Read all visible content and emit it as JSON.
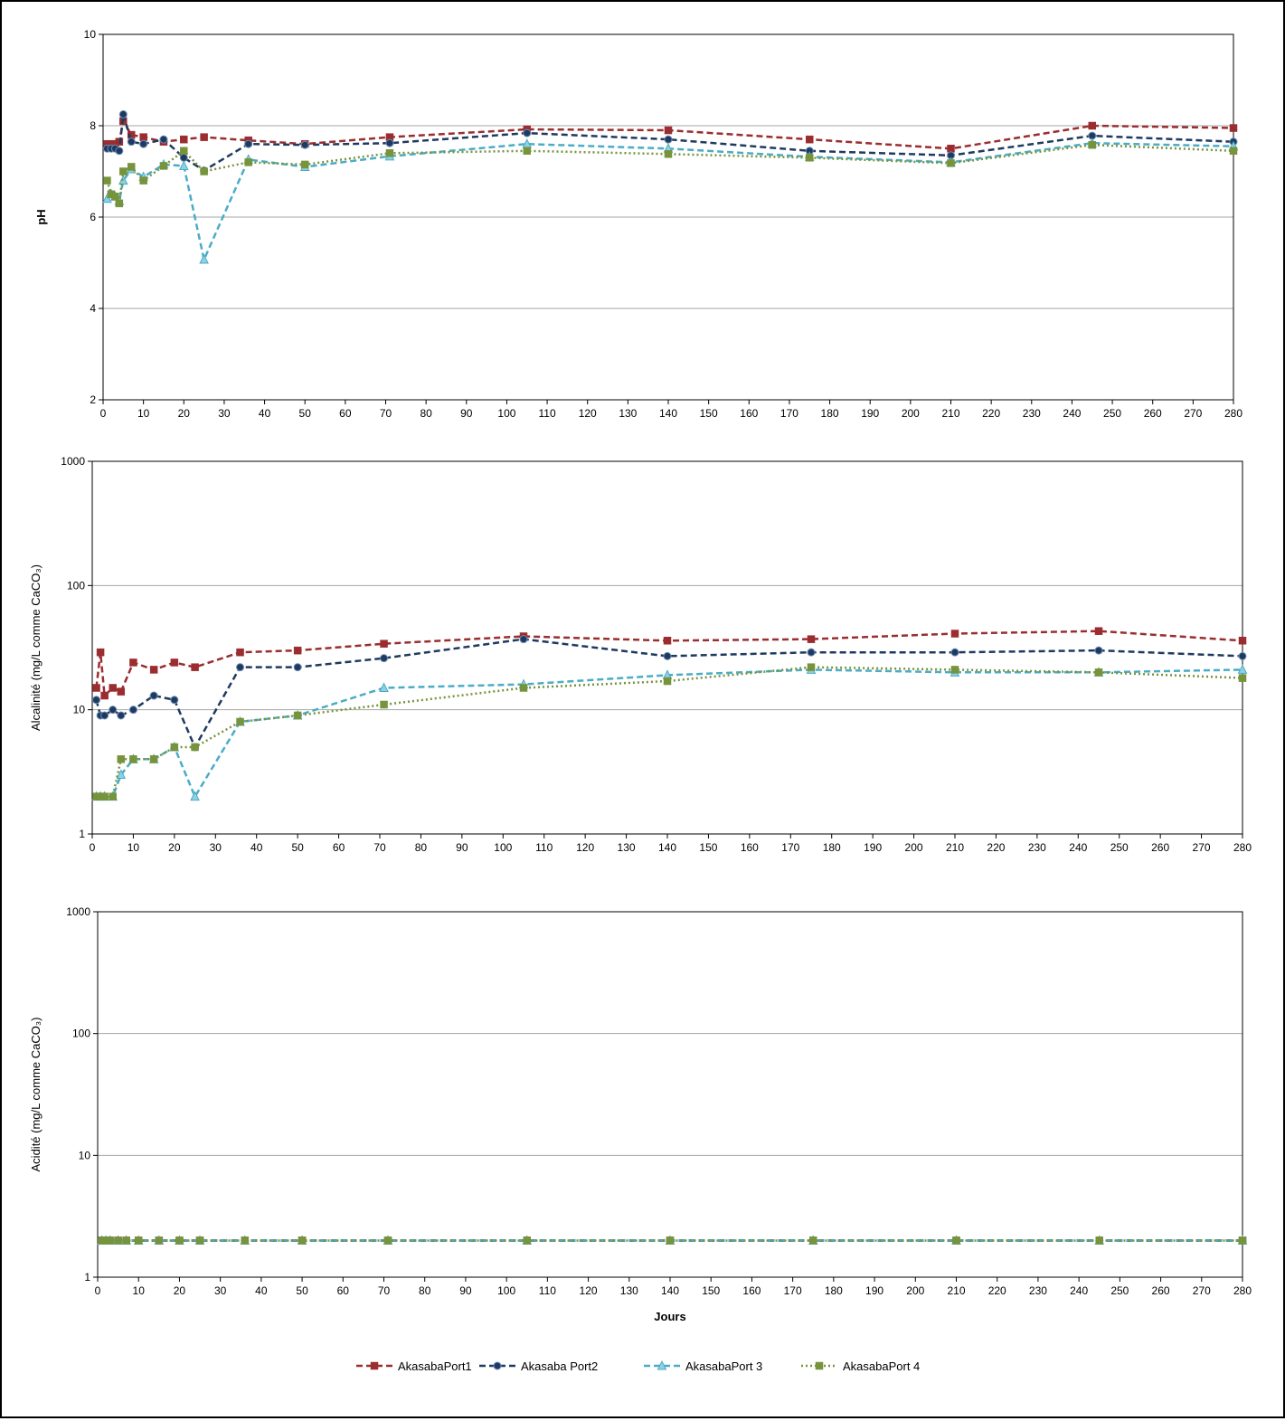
{
  "colors": {
    "AkasabaPort1": "#9b2d30",
    "Akasaba Port2": "#1f3a60",
    "AkasabaPort 3": "#4bacc6",
    "AkasabaPort 4": "#77933c",
    "grid": "#a6a6a6"
  },
  "legend": {
    "placement": "bottom",
    "items": [
      {
        "name": "AkasabaPort1",
        "marker": "square",
        "dash": "dashed"
      },
      {
        "name": "Akasaba Port2",
        "marker": "circle",
        "dash": "dashed"
      },
      {
        "name": "AkasabaPort 3",
        "marker": "triangle",
        "dash": "dashed"
      },
      {
        "name": "AkasabaPort 4",
        "marker": "square",
        "dash": "dotted"
      }
    ]
  },
  "chart_data": [
    {
      "type": "line",
      "ylabel": "pH",
      "xlabel": "",
      "xlim": [
        0,
        280
      ],
      "ylim": [
        2,
        10
      ],
      "yscale": "linear",
      "xticks": [
        0,
        10,
        20,
        30,
        40,
        50,
        60,
        70,
        80,
        90,
        100,
        110,
        120,
        130,
        140,
        150,
        160,
        170,
        180,
        190,
        200,
        210,
        220,
        230,
        240,
        250,
        260,
        270,
        280
      ],
      "yticks": [
        2,
        4,
        6,
        8,
        10
      ],
      "grid": true,
      "series": [
        {
          "name": "AkasabaPort1",
          "x": [
            1,
            2,
            3,
            4,
            5,
            7,
            10,
            15,
            20,
            25,
            36,
            50,
            71,
            105,
            140,
            175,
            210,
            245,
            280
          ],
          "y": [
            7.6,
            7.6,
            7.6,
            7.65,
            8.1,
            7.8,
            7.75,
            7.65,
            7.7,
            7.75,
            7.68,
            7.6,
            7.75,
            7.92,
            7.9,
            7.7,
            7.5,
            8.0,
            7.95
          ]
        },
        {
          "name": "Akasaba Port2",
          "x": [
            1,
            2,
            3,
            4,
            5,
            7,
            10,
            15,
            20,
            25,
            36,
            50,
            71,
            105,
            140,
            175,
            210,
            245,
            280
          ],
          "y": [
            7.5,
            7.5,
            7.5,
            7.45,
            8.25,
            7.65,
            7.6,
            7.7,
            7.3,
            7.02,
            7.6,
            7.58,
            7.62,
            7.84,
            7.7,
            7.45,
            7.35,
            7.78,
            7.65
          ]
        },
        {
          "name": "AkasabaPort 3",
          "x": [
            1,
            2,
            3,
            4,
            5,
            7,
            10,
            15,
            20,
            25,
            36,
            50,
            71,
            105,
            140,
            175,
            210,
            245,
            280
          ],
          "y": [
            6.4,
            6.5,
            6.45,
            6.35,
            6.8,
            7.05,
            6.88,
            7.15,
            7.12,
            5.07,
            7.26,
            7.1,
            7.33,
            7.6,
            7.5,
            7.32,
            7.2,
            7.62,
            7.55
          ]
        },
        {
          "name": "AkasabaPort 4",
          "x": [
            1,
            2,
            3,
            4,
            5,
            7,
            10,
            15,
            20,
            25,
            36,
            50,
            71,
            105,
            140,
            175,
            210,
            245,
            280
          ],
          "y": [
            6.8,
            6.5,
            6.45,
            6.3,
            7.0,
            7.1,
            6.8,
            7.12,
            7.45,
            7.0,
            7.2,
            7.15,
            7.4,
            7.45,
            7.38,
            7.3,
            7.18,
            7.58,
            7.45
          ]
        }
      ]
    },
    {
      "type": "line",
      "ylabel": "Alcalinité (mg/L comme CaCO₃)",
      "xlabel": "",
      "xlim": [
        0,
        280
      ],
      "ylim": [
        1,
        1000
      ],
      "yscale": "log",
      "xticks": [
        0,
        10,
        20,
        30,
        40,
        50,
        60,
        70,
        80,
        90,
        100,
        110,
        120,
        130,
        140,
        150,
        160,
        170,
        180,
        190,
        200,
        210,
        220,
        230,
        240,
        250,
        260,
        270,
        280
      ],
      "yticks": [
        1,
        10,
        100,
        1000
      ],
      "grid": true,
      "series": [
        {
          "name": "AkasabaPort1",
          "x": [
            1,
            2,
            3,
            5,
            7,
            10,
            15,
            20,
            25,
            36,
            50,
            71,
            105,
            140,
            175,
            210,
            245,
            280
          ],
          "y": [
            15,
            29,
            13,
            15,
            14,
            24,
            21,
            24,
            22,
            29,
            30,
            34,
            39,
            36,
            37,
            41,
            43,
            36
          ]
        },
        {
          "name": "Akasaba Port2",
          "x": [
            1,
            2,
            3,
            5,
            7,
            10,
            15,
            20,
            25,
            36,
            50,
            71,
            105,
            140,
            175,
            210,
            245,
            280
          ],
          "y": [
            12,
            9,
            9,
            10,
            9,
            10,
            13,
            12,
            5,
            22,
            22,
            26,
            37,
            27,
            29,
            29,
            30,
            27
          ]
        },
        {
          "name": "AkasabaPort 3",
          "x": [
            1,
            2,
            3,
            5,
            7,
            10,
            15,
            20,
            25,
            36,
            50,
            71,
            105,
            140,
            175,
            210,
            245,
            280
          ],
          "y": [
            2,
            2,
            2,
            2,
            3,
            4,
            4,
            5,
            2,
            8,
            9,
            15,
            16,
            19,
            21,
            20,
            20,
            21
          ]
        },
        {
          "name": "AkasabaPort 4",
          "x": [
            1,
            2,
            3,
            5,
            7,
            10,
            15,
            20,
            25,
            36,
            50,
            71,
            105,
            140,
            175,
            210,
            245,
            280
          ],
          "y": [
            2,
            2,
            2,
            2,
            4,
            4,
            4,
            5,
            5,
            8,
            9,
            11,
            15,
            17,
            22,
            21,
            20,
            18
          ]
        }
      ]
    },
    {
      "type": "line",
      "ylabel": "Acidité (mg/L comme CaCO₃)",
      "xlabel": "Jours",
      "xlim": [
        0,
        280
      ],
      "ylim": [
        1,
        1000
      ],
      "yscale": "log",
      "xticks": [
        0,
        10,
        20,
        30,
        40,
        50,
        60,
        70,
        80,
        90,
        100,
        110,
        120,
        130,
        140,
        150,
        160,
        170,
        180,
        190,
        200,
        210,
        220,
        230,
        240,
        250,
        260,
        270,
        280
      ],
      "yticks": [
        1,
        10,
        100,
        1000
      ],
      "grid": true,
      "series": [
        {
          "name": "AkasabaPort1",
          "x": [
            1,
            2,
            3,
            5,
            7,
            10,
            15,
            20,
            25,
            36,
            50,
            71,
            105,
            140,
            175,
            210,
            245,
            280
          ],
          "y": [
            2,
            2,
            2,
            2,
            2,
            2,
            2,
            2,
            2,
            2,
            2,
            2,
            2,
            2,
            2,
            2,
            2,
            2
          ]
        },
        {
          "name": "Akasaba Port2",
          "x": [
            1,
            2,
            3,
            5,
            7,
            10,
            15,
            20,
            25,
            36,
            50,
            71,
            105,
            140,
            175,
            210,
            245,
            280
          ],
          "y": [
            2,
            2,
            2,
            2,
            2,
            2,
            2,
            2,
            2,
            2,
            2,
            2,
            2,
            2,
            2,
            2,
            2,
            2
          ]
        },
        {
          "name": "AkasabaPort 3",
          "x": [
            1,
            2,
            3,
            5,
            7,
            10,
            15,
            20,
            25,
            36,
            50,
            71,
            105,
            140,
            175,
            210,
            245,
            280
          ],
          "y": [
            2,
            2,
            2,
            2,
            2,
            2,
            2,
            2,
            2,
            2,
            2,
            2,
            2,
            2,
            2,
            2,
            2,
            2
          ]
        },
        {
          "name": "AkasabaPort 4",
          "x": [
            1,
            2,
            3,
            5,
            7,
            10,
            15,
            20,
            25,
            36,
            50,
            71,
            105,
            140,
            175,
            210,
            245,
            280
          ],
          "y": [
            2,
            2,
            2,
            2,
            2,
            2,
            2,
            2,
            2,
            2,
            2,
            2,
            2,
            2,
            2,
            2,
            2,
            2
          ]
        }
      ]
    }
  ]
}
